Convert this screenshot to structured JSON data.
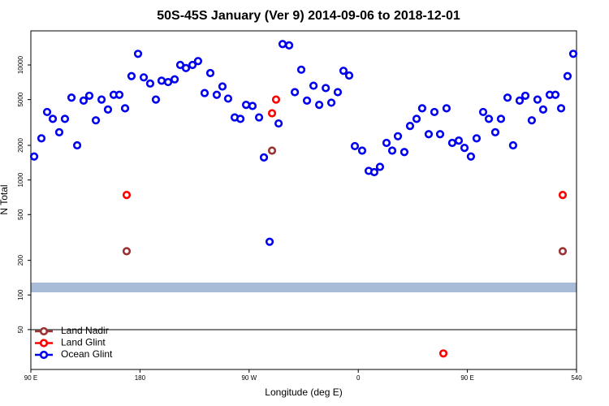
{
  "chart_data": {
    "type": "scatter",
    "title": "50S-45S January (Ver 9)   2014-09-06 to 2018-12-01",
    "x_label": "Longitude (deg E)",
    "y_label": "N Total",
    "xlim": [
      90,
      540
    ],
    "xticks": [
      {
        "value": 90,
        "label": "90 E"
      },
      180,
      {
        "value": 270,
        "label": "90 W"
      },
      {
        "value": 360,
        "label": "0"
      },
      {
        "value": 450,
        "label": "90 E"
      },
      540
    ],
    "ylim": [
      22.5,
      19800
    ],
    "log_y": true,
    "yticks": [
      50,
      100,
      200,
      500,
      1000,
      2000,
      5000,
      10000
    ],
    "legend": "bottom-left",
    "series": [
      {
        "name": "Land Nadir",
        "color": "#993333",
        "x": [
          169.0,
          288.9,
          528.6
        ],
        "values": [
          240,
          1800,
          240
        ]
      },
      {
        "name": "Land Glint",
        "color": "#ff0000",
        "x": [
          169.0,
          288.9,
          292.2,
          430.2,
          528.6
        ],
        "values": [
          740,
          3800,
          5000,
          31,
          740
        ]
      },
      {
        "name": "Ocean Glint",
        "color": "#0000ee",
        "x": [
          92.7,
          98.7,
          103.4,
          108.1,
          113.4,
          118.1,
          123.5,
          128.2,
          133.5,
          138.2,
          143.6,
          148.3,
          153.6,
          158.3,
          163.0,
          167.7,
          173.0,
          178.4,
          183.1,
          188.4,
          193.1,
          197.8,
          203.2,
          208.6,
          213.2,
          217.9,
          223.3,
          227.9,
          233.3,
          238.0,
          243.3,
          248.0,
          252.7,
          258.1,
          262.8,
          267.5,
          272.8,
          278.2,
          282.2,
          286.9,
          294.3,
          297.6,
          303.0,
          307.7,
          313.0,
          317.7,
          323.1,
          327.8,
          333.2,
          337.8,
          343.1,
          347.8,
          352.5,
          357.2,
          363.2,
          368.6,
          373.2,
          377.9,
          383.3,
          388.0,
          392.7,
          398.0,
          402.7,
          408.1,
          412.7,
          418.1,
          422.8,
          427.5,
          432.8,
          437.5,
          442.9,
          447.6,
          452.9,
          457.6,
          463.0,
          467.7,
          473.0,
          477.7,
          483.1,
          487.7,
          493.1,
          497.8,
          503.1,
          507.8,
          512.5,
          517.9,
          522.6,
          527.3,
          532.6,
          537.3
        ],
        "values": [
          1600,
          2300,
          3900,
          3400,
          2600,
          3400,
          5200,
          2000,
          4900,
          5400,
          3300,
          5000,
          4100,
          5500,
          5500,
          4200,
          8000,
          12500,
          7800,
          6900,
          5000,
          7300,
          7100,
          7500,
          10000,
          9400,
          10000,
          10800,
          5700,
          8500,
          5500,
          6500,
          5100,
          3500,
          3400,
          4500,
          4400,
          3500,
          1570,
          290,
          3100,
          15200,
          14800,
          5800,
          9100,
          4900,
          6600,
          4500,
          6300,
          4700,
          5800,
          8900,
          8100,
          1970,
          1800,
          1200,
          1170,
          1300,
          2100,
          1800,
          2400,
          1750,
          2950,
          3400,
          4200,
          2500,
          3900,
          2500,
          4200,
          2100,
          2200,
          1900,
          1600,
          2300,
          3900,
          3400,
          2600,
          3400,
          5200,
          2000,
          4900,
          5400,
          3300,
          5000,
          4100,
          5500,
          5500,
          4200,
          8000,
          12500
        ]
      }
    ]
  }
}
